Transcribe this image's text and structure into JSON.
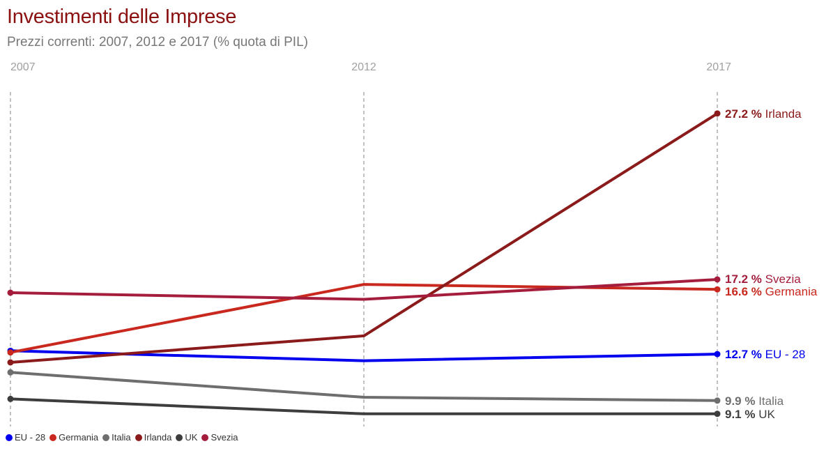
{
  "title": "Investimenti delle Imprese",
  "subtitle": "Prezzi correnti: 2007, 2012 e 2017 (% quota di PIL)",
  "chart_data": {
    "type": "line",
    "title": "Investimenti delle Imprese",
    "subtitle": "Prezzi correnti: 2007, 2012 e 2017 (% quota di PIL)",
    "x": [
      "2007",
      "2012",
      "2017"
    ],
    "ylim": [
      8,
      29
    ],
    "grid": "vertical dashed lines at each year",
    "legend_position": "bottom-left",
    "value_suffix": " %",
    "series": [
      {
        "name": "EU - 28",
        "color": "#0000ee",
        "values": [
          12.9,
          12.3,
          12.7
        ],
        "end_label": "12.7 %"
      },
      {
        "name": "Germania",
        "color": "#c8281e",
        "values": [
          12.8,
          16.9,
          16.6
        ],
        "end_label": "16.6 %"
      },
      {
        "name": "Italia",
        "color": "#6e6e6e",
        "values": [
          11.6,
          10.1,
          9.9
        ],
        "end_label": "9.9 %"
      },
      {
        "name": "Irlanda",
        "color": "#8b1a1a",
        "values": [
          12.2,
          13.8,
          27.2
        ],
        "end_label": "27.2 %"
      },
      {
        "name": "UK",
        "color": "#3d3d3d",
        "values": [
          10.0,
          9.1,
          9.1
        ],
        "end_label": "9.1 %"
      },
      {
        "name": "Svezia",
        "color": "#a41d3c",
        "values": [
          16.4,
          16.0,
          17.2
        ],
        "end_label": "17.2 %"
      }
    ]
  }
}
